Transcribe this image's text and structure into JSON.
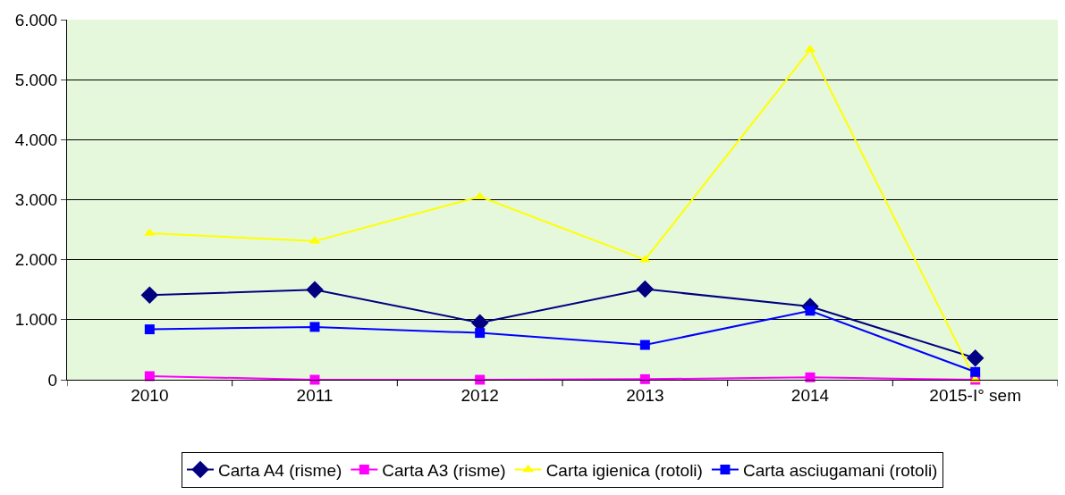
{
  "chart_data": {
    "type": "line",
    "categories": [
      "2010",
      "2011",
      "2012",
      "2013",
      "2014",
      "2015-I° sem"
    ],
    "series": [
      {
        "name": "Carta A4 (risme)",
        "color": "#000080",
        "marker": "diamond",
        "values": [
          1410,
          1500,
          950,
          1510,
          1220,
          360
        ]
      },
      {
        "name": "Carta A3 (risme)",
        "color": "#ff00ff",
        "marker": "square",
        "values": [
          60,
          0,
          0,
          10,
          40,
          0
        ]
      },
      {
        "name": "Carta igienica (rotoli)",
        "color": "#ffff00",
        "marker": "triangle",
        "values": [
          2440,
          2310,
          3050,
          2000,
          5500,
          0
        ]
      },
      {
        "name": "Carta asciugamani (rotoli)",
        "color": "#0000ff",
        "marker": "square",
        "values": [
          840,
          880,
          780,
          580,
          1150,
          130
        ]
      }
    ],
    "ylim": [
      0,
      6000
    ],
    "yticks": [
      {
        "value": 0,
        "label": "0"
      },
      {
        "value": 1000,
        "label": "1.000"
      },
      {
        "value": 2000,
        "label": "2.000"
      },
      {
        "value": 3000,
        "label": "3.000"
      },
      {
        "value": 4000,
        "label": "4.000"
      },
      {
        "value": 5000,
        "label": "5.000"
      },
      {
        "value": 6000,
        "label": "6.000"
      }
    ],
    "grid": "y",
    "legend": "bottom",
    "line_style": "solid"
  }
}
